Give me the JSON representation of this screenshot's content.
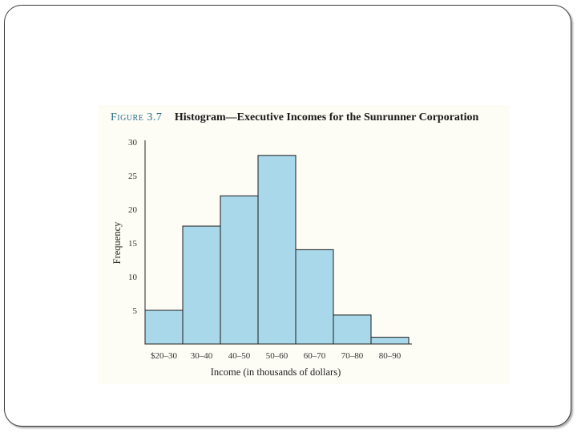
{
  "figure": {
    "label": "Figure 3.7",
    "heading": "Histogram—Executive Incomes for the Sunrunner Corporation"
  },
  "chart_data": {
    "type": "bar",
    "categories": [
      "$20–30",
      "30–40",
      "40–50",
      "50–60",
      "60–70",
      "70–80",
      "80–90"
    ],
    "values": [
      5,
      17.5,
      22,
      28,
      14,
      4.3,
      1
    ],
    "xlabel": "Income (in thousands of dollars)",
    "ylabel": "Frequency",
    "ylim": [
      0,
      30
    ],
    "yticks": [
      "5",
      "10",
      "15",
      "20",
      "25",
      "30"
    ],
    "grid": false,
    "bar_color": "#a9d8ea",
    "edge_color": "#1a1a1a"
  }
}
